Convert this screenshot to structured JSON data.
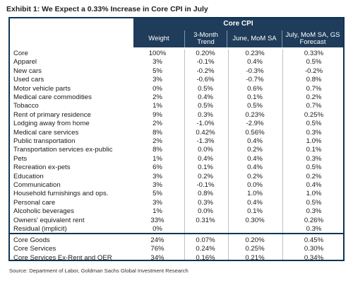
{
  "title": "Exhibit 1: We Expect a 0.33% Increase in Core CPI in July",
  "header": {
    "group": "Core CPI",
    "columns": [
      "Weight",
      "3-Month Trend",
      "June, MoM SA",
      "July, MoM SA, GS Forecast"
    ]
  },
  "rows": [
    {
      "name": "Core",
      "weight": "100%",
      "trend": "0.20%",
      "june": "0.23%",
      "july": "0.33%"
    },
    {
      "name": "Apparel",
      "weight": "3%",
      "trend": "-0.1%",
      "june": "0.4%",
      "july": "0.5%"
    },
    {
      "name": "New cars",
      "weight": "5%",
      "trend": "-0.2%",
      "june": "-0.3%",
      "july": "-0.2%"
    },
    {
      "name": "Used cars",
      "weight": "3%",
      "trend": "-0.6%",
      "june": "-0.7%",
      "july": "0.8%"
    },
    {
      "name": "Motor vehicle parts",
      "weight": "0%",
      "trend": "0.5%",
      "june": "0.6%",
      "july": "0.7%"
    },
    {
      "name": "Medical care commodities",
      "weight": "2%",
      "trend": "0.4%",
      "june": "0.1%",
      "july": "0.2%"
    },
    {
      "name": "Tobacco",
      "weight": "1%",
      "trend": "0.5%",
      "june": "0.5%",
      "july": "0.7%"
    },
    {
      "name": "Rent of primary residence",
      "weight": "9%",
      "trend": "0.3%",
      "june": "0.23%",
      "july": "0.25%"
    },
    {
      "name": "Lodging away from home",
      "weight": "2%",
      "trend": "-1.0%",
      "june": "-2.9%",
      "july": "0.5%"
    },
    {
      "name": "Medical care services",
      "weight": "8%",
      "trend": "0.42%",
      "june": "0.56%",
      "july": "0.3%"
    },
    {
      "name": "Public transportation",
      "weight": "2%",
      "trend": "-1.3%",
      "june": "0.4%",
      "july": "1.0%"
    },
    {
      "name": "Transportation services ex-public",
      "weight": "8%",
      "trend": "0.0%",
      "june": "0.2%",
      "july": "0.1%"
    },
    {
      "name": "Pets",
      "weight": "1%",
      "trend": "0.4%",
      "june": "0.4%",
      "july": "0.3%"
    },
    {
      "name": "Recreation ex-pets",
      "weight": "6%",
      "trend": "0.1%",
      "june": "0.4%",
      "july": "0.5%"
    },
    {
      "name": "Education",
      "weight": "3%",
      "trend": "0.2%",
      "june": "0.2%",
      "july": "0.2%"
    },
    {
      "name": "Communication",
      "weight": "3%",
      "trend": "-0.1%",
      "june": "0.0%",
      "july": "0.4%"
    },
    {
      "name": "Household furnishings and ops.",
      "weight": "5%",
      "trend": "0.8%",
      "june": "1.0%",
      "july": "1.0%"
    },
    {
      "name": "Personal care",
      "weight": "3%",
      "trend": "0.3%",
      "june": "0.4%",
      "july": "0.5%"
    },
    {
      "name": "Alcoholic beverages",
      "weight": "1%",
      "trend": "0.0%",
      "june": "0.1%",
      "july": "0.3%"
    },
    {
      "name": "Owners' equivalent rent",
      "weight": "33%",
      "trend": "0.31%",
      "june": "0.30%",
      "july": "0.26%"
    },
    {
      "name": "Residual (implicit)",
      "weight": "0%",
      "trend": "",
      "june": "",
      "july": "0.3%"
    }
  ],
  "summary_rows": [
    {
      "name": "Core Goods",
      "weight": "24%",
      "trend": "0.07%",
      "june": "0.20%",
      "july": "0.45%"
    },
    {
      "name": "Core Services",
      "weight": "76%",
      "trend": "0.24%",
      "june": "0.25%",
      "july": "0.30%"
    },
    {
      "name": "Core Services Ex-Rent and OER",
      "weight": "34%",
      "trend": "0.16%",
      "june": "0.21%",
      "july": "0.34%"
    }
  ],
  "source": "Source: Department of Labor, Goldman Sachs Global Investment Research",
  "colors": {
    "header_bg": "#1f3c5a",
    "border": "#0f3556"
  }
}
